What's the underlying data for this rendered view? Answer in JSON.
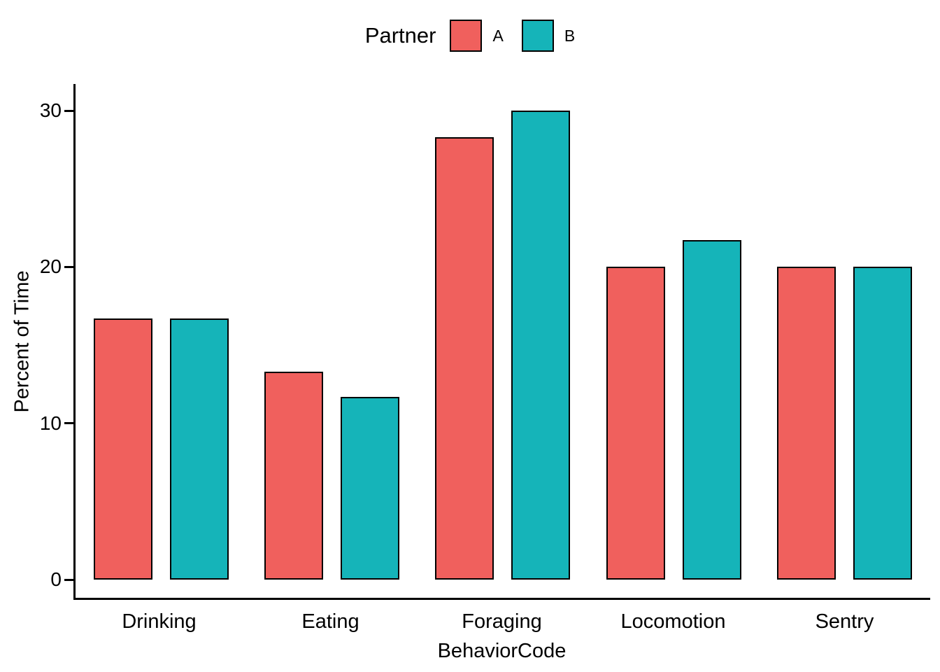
{
  "chart_data": {
    "type": "bar",
    "title": "",
    "legend_title": "Partner",
    "legend_position": "top",
    "xlabel": "BehaviorCode",
    "ylabel": "Percent of Time",
    "categories": [
      "Drinking",
      "Eating",
      "Foraging",
      "Locomotion",
      "Sentry"
    ],
    "series": [
      {
        "name": "A",
        "color": "#F0605D",
        "values": [
          16.7,
          13.3,
          28.3,
          20,
          20
        ]
      },
      {
        "name": "B",
        "color": "#15B4B9",
        "values": [
          16.7,
          11.7,
          30,
          21.7,
          20
        ]
      }
    ],
    "ylim": [
      0,
      30
    ],
    "yticks": [
      0,
      10,
      20,
      30
    ],
    "grid": false,
    "bar_outline_color": "#000000",
    "background_color": "#ffffff"
  }
}
